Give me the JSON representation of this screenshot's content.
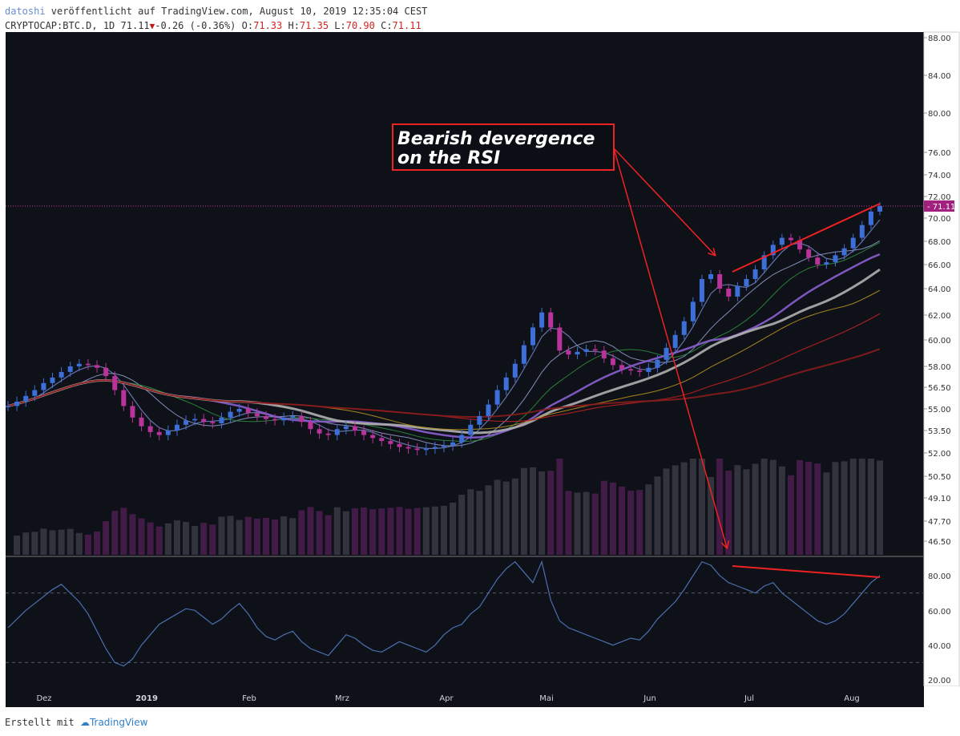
{
  "header": {
    "user": "datoshi",
    "published_text": " veröffentlicht auf TradingView.com, August 10, 2019 12:35:04 CEST",
    "symbol": "CRYPTOCAP:BTC.D, 1D",
    "last": "71.11",
    "change": "-0.26 (-0.36%)",
    "o_label": "O:",
    "o_value": "71.33",
    "h_label": "H:",
    "h_value": "71.35",
    "l_label": "L:",
    "l_value": "70.90",
    "c_label": "C:",
    "c_value": "71.11"
  },
  "footer": {
    "created_with": "Erstellt mit",
    "brand": "TradingView"
  },
  "colors": {
    "background": "#0f1119",
    "candle_up": "#3d6fd8",
    "candle_down": "#b8339a",
    "rsi": "#4a6fb0",
    "annotation": "#ee2222",
    "price_line": "#c83c9c"
  },
  "annotation": {
    "line1": "Bearish devergence",
    "line2": "on the RSI"
  },
  "chart_data": [
    {
      "type": "candlestick",
      "title": "",
      "y_axis_labels": [
        "88.00",
        "84.00",
        "80.00",
        "76.00",
        "74.00",
        "72.00",
        "70.00",
        "68.00",
        "66.00",
        "64.00",
        "62.00",
        "60.00",
        "58.00",
        "56.50",
        "55.00",
        "53.50",
        "52.00",
        "50.50",
        "49.10",
        "47.70",
        "46.50"
      ],
      "x_axis_labels": [
        "Dez",
        "2019",
        "Feb",
        "Mrz",
        "Apr",
        "Mai",
        "Jun",
        "Jul",
        "Aug"
      ],
      "last_price_label": "71.11",
      "close_series": [
        55.2,
        55.5,
        55.9,
        56.3,
        56.8,
        57.2,
        57.6,
        58.0,
        58.2,
        58.1,
        57.9,
        57.3,
        56.3,
        55.2,
        54.4,
        53.8,
        53.4,
        53.2,
        53.5,
        53.9,
        54.2,
        54.3,
        54.1,
        54.0,
        54.4,
        54.8,
        55.0,
        54.7,
        54.5,
        54.3,
        54.2,
        54.4,
        54.5,
        54.1,
        53.6,
        53.3,
        53.2,
        53.6,
        53.8,
        53.5,
        53.2,
        53.0,
        52.8,
        52.6,
        52.4,
        52.3,
        52.2,
        52.3,
        52.4,
        52.5,
        52.7,
        53.2,
        53.9,
        54.5,
        55.3,
        56.3,
        57.2,
        58.2,
        59.6,
        61.0,
        62.2,
        61.0,
        59.2,
        58.9,
        59.1,
        59.3,
        59.2,
        58.6,
        58.1,
        57.8,
        57.7,
        57.6,
        57.9,
        58.5,
        59.4,
        60.4,
        61.5,
        63.0,
        64.8,
        65.2,
        64.0,
        63.4,
        64.2,
        64.8,
        65.6,
        66.8,
        67.7,
        68.3,
        68.1,
        67.3,
        66.6,
        66.0,
        66.2,
        66.8,
        67.4,
        68.3,
        69.4,
        70.6,
        71.11
      ],
      "rsi_axis_labels": [
        "80.00",
        "60.00",
        "40.00",
        "20.00"
      ],
      "rsi_series": [
        50,
        55,
        60,
        64,
        68,
        72,
        75,
        70,
        65,
        58,
        48,
        38,
        30,
        28,
        32,
        40,
        46,
        52,
        55,
        58,
        61,
        60,
        56,
        52,
        55,
        60,
        64,
        58,
        50,
        45,
        43,
        46,
        48,
        42,
        38,
        36,
        34,
        40,
        46,
        44,
        40,
        37,
        36,
        39,
        42,
        40,
        38,
        36,
        40,
        46,
        50,
        52,
        58,
        62,
        70,
        78,
        84,
        88,
        82,
        76,
        88,
        66,
        54,
        50,
        48,
        46,
        44,
        42,
        40,
        42,
        44,
        43,
        48,
        55,
        60,
        65,
        72,
        80,
        88,
        86,
        80,
        76,
        74,
        72,
        70,
        74,
        76,
        70,
        66,
        62,
        58,
        54,
        52,
        54,
        58,
        64,
        70,
        76,
        80
      ]
    }
  ]
}
